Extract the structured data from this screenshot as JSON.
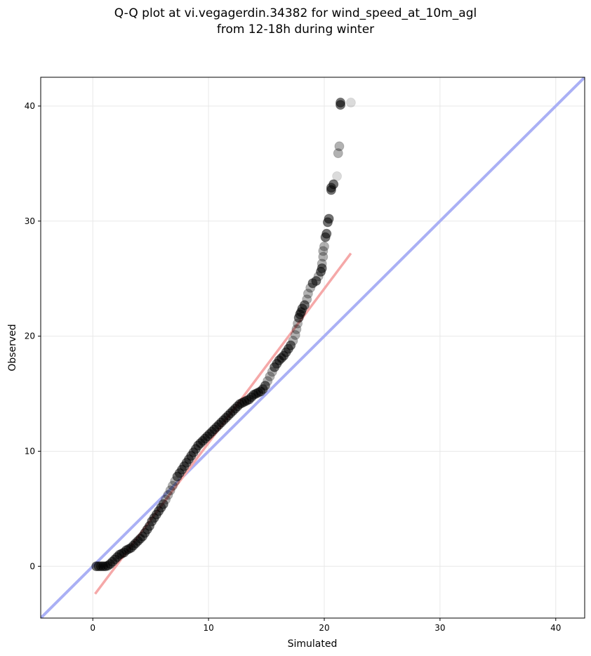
{
  "title": {
    "line1": "Q-Q plot at vi.vegagerdin.34382 for wind_speed_at_10m_agl",
    "line2": "from 12-18h during winter"
  },
  "colors": {
    "points": "#000000",
    "identity_line": "#aab0f5",
    "fit_line": "#f5a8a8",
    "grid": "#e8e8e8"
  },
  "chart_data": {
    "type": "scatter",
    "title": "Q-Q plot at vi.vegagerdin.34382 for wind_speed_at_10m_agl from 12-18h during winter",
    "xlabel": "Simulated",
    "ylabel": "Observed",
    "xlim": [
      -4.5,
      42.5
    ],
    "ylim": [
      -4.5,
      42.5
    ],
    "xticks": [
      0,
      10,
      20,
      30,
      40
    ],
    "yticks": [
      0,
      10,
      20,
      30,
      40
    ],
    "grid": true,
    "reference_line": {
      "name": "1:1 line",
      "points": [
        [
          -4.5,
          -4.5
        ],
        [
          42.5,
          42.5
        ]
      ]
    },
    "fit_line": {
      "name": "linear fit",
      "points": [
        [
          0.2,
          -2.4
        ],
        [
          22.3,
          27.2
        ]
      ]
    },
    "quantiles": [
      [
        0.3,
        0.0
      ],
      [
        0.5,
        0.0
      ],
      [
        0.7,
        0.0
      ],
      [
        0.9,
        0.0
      ],
      [
        1.1,
        0.0
      ],
      [
        1.3,
        0.05
      ],
      [
        1.5,
        0.2
      ],
      [
        1.7,
        0.4
      ],
      [
        1.9,
        0.6
      ],
      [
        2.1,
        0.8
      ],
      [
        2.3,
        1.0
      ],
      [
        2.5,
        1.1
      ],
      [
        2.7,
        1.2
      ],
      [
        2.9,
        1.4
      ],
      [
        3.1,
        1.5
      ],
      [
        3.3,
        1.6
      ],
      [
        3.5,
        1.8
      ],
      [
        3.7,
        2.0
      ],
      [
        3.9,
        2.2
      ],
      [
        4.1,
        2.4
      ],
      [
        4.3,
        2.6
      ],
      [
        4.5,
        2.9
      ],
      [
        4.7,
        3.2
      ],
      [
        4.9,
        3.5
      ],
      [
        5.1,
        3.9
      ],
      [
        5.3,
        4.2
      ],
      [
        5.5,
        4.5
      ],
      [
        5.7,
        4.8
      ],
      [
        5.9,
        5.1
      ],
      [
        6.1,
        5.4
      ],
      [
        6.3,
        5.8
      ],
      [
        6.5,
        6.2
      ],
      [
        6.7,
        6.6
      ],
      [
        6.9,
        7.0
      ],
      [
        7.1,
        7.4
      ],
      [
        7.3,
        7.8
      ],
      [
        7.5,
        8.1
      ],
      [
        7.7,
        8.4
      ],
      [
        7.9,
        8.7
      ],
      [
        8.1,
        9.0
      ],
      [
        8.3,
        9.3
      ],
      [
        8.5,
        9.6
      ],
      [
        8.7,
        9.9
      ],
      [
        8.9,
        10.2
      ],
      [
        9.1,
        10.5
      ],
      [
        9.3,
        10.7
      ],
      [
        9.5,
        10.9
      ],
      [
        9.7,
        11.1
      ],
      [
        9.9,
        11.3
      ],
      [
        10.1,
        11.5
      ],
      [
        10.3,
        11.7
      ],
      [
        10.5,
        11.9
      ],
      [
        10.7,
        12.1
      ],
      [
        10.9,
        12.3
      ],
      [
        11.1,
        12.5
      ],
      [
        11.3,
        12.7
      ],
      [
        11.5,
        12.9
      ],
      [
        11.7,
        13.1
      ],
      [
        11.9,
        13.3
      ],
      [
        12.1,
        13.5
      ],
      [
        12.3,
        13.7
      ],
      [
        12.5,
        13.9
      ],
      [
        12.7,
        14.1
      ],
      [
        12.9,
        14.2
      ],
      [
        13.1,
        14.3
      ],
      [
        13.3,
        14.4
      ],
      [
        13.5,
        14.5
      ],
      [
        13.7,
        14.7
      ],
      [
        13.9,
        14.9
      ],
      [
        14.1,
        15.0
      ],
      [
        14.3,
        15.1
      ],
      [
        14.5,
        15.2
      ],
      [
        14.7,
        15.4
      ],
      [
        14.9,
        15.7
      ],
      [
        15.1,
        16.1
      ],
      [
        15.3,
        16.5
      ],
      [
        15.5,
        16.9
      ],
      [
        15.7,
        17.3
      ],
      [
        15.9,
        17.6
      ],
      [
        16.1,
        17.9
      ],
      [
        16.3,
        18.1
      ],
      [
        16.5,
        18.3
      ],
      [
        16.7,
        18.6
      ],
      [
        16.9,
        18.9
      ],
      [
        17.1,
        19.2
      ],
      [
        17.3,
        19.6
      ],
      [
        17.5,
        20.1
      ],
      [
        17.6,
        20.6
      ],
      [
        17.7,
        21.1
      ],
      [
        17.8,
        21.6
      ],
      [
        17.9,
        21.9
      ],
      [
        18.0,
        22.1
      ],
      [
        18.1,
        22.4
      ],
      [
        18.3,
        22.7
      ],
      [
        18.5,
        23.2
      ],
      [
        18.6,
        23.7
      ],
      [
        18.8,
        24.2
      ],
      [
        19.0,
        24.6
      ],
      [
        19.3,
        24.8
      ],
      [
        19.5,
        25.2
      ],
      [
        19.7,
        25.6
      ],
      [
        19.8,
        25.9
      ],
      [
        19.8,
        26.3
      ],
      [
        19.9,
        26.9
      ],
      [
        19.9,
        27.4
      ],
      [
        20.0,
        27.8
      ],
      [
        20.1,
        28.6
      ],
      [
        20.2,
        28.9
      ],
      [
        20.3,
        29.9
      ],
      [
        20.4,
        30.2
      ],
      [
        20.6,
        32.7
      ],
      [
        20.6,
        32.9
      ],
      [
        20.8,
        33.2
      ],
      [
        21.1,
        33.9
      ],
      [
        21.2,
        35.9
      ],
      [
        21.3,
        36.5
      ],
      [
        21.4,
        40.1
      ],
      [
        21.4,
        40.3
      ],
      [
        22.3,
        40.3
      ]
    ]
  }
}
